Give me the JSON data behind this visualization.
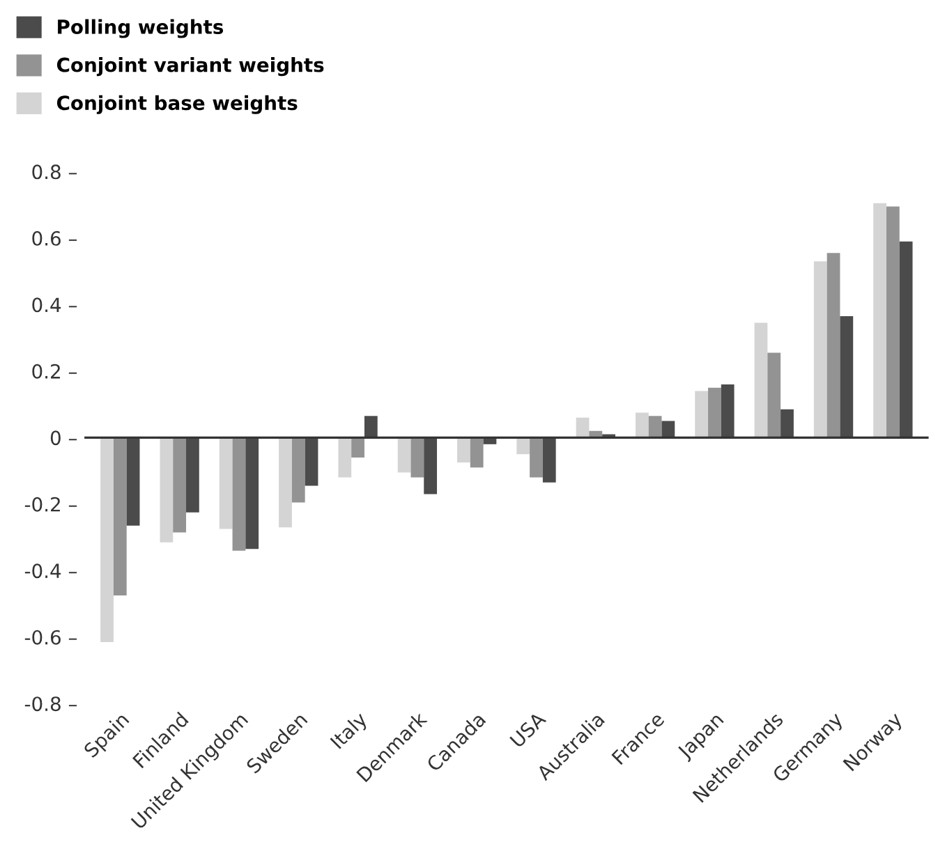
{
  "chart_data": {
    "type": "bar",
    "categories": [
      "Spain",
      "Finland",
      "United Kingdom",
      "Sweden",
      "Italy",
      "Denmark",
      "Canada",
      "USA",
      "Australia",
      "France",
      "Japan",
      "Netherlands",
      "Germany",
      "Norway"
    ],
    "series": [
      {
        "name": "Conjoint base weights",
        "color": "#d4d4d4",
        "values": [
          -0.615,
          -0.315,
          -0.275,
          -0.27,
          -0.12,
          -0.105,
          -0.075,
          -0.05,
          0.06,
          0.075,
          0.14,
          0.345,
          0.53,
          0.705
        ]
      },
      {
        "name": "Conjoint variant weights",
        "color": "#939393",
        "values": [
          -0.475,
          -0.285,
          -0.34,
          -0.195,
          -0.06,
          -0.12,
          -0.09,
          -0.12,
          0.02,
          0.065,
          0.15,
          0.255,
          0.555,
          0.695
        ]
      },
      {
        "name": "Polling weights",
        "color": "#4b4b4b",
        "values": [
          -0.265,
          -0.225,
          -0.335,
          -0.145,
          0.065,
          -0.17,
          -0.02,
          -0.135,
          0.01,
          0.05,
          0.16,
          0.085,
          0.365,
          0.59
        ]
      }
    ],
    "ylim": [
      -0.8,
      0.8
    ],
    "yticks": [
      {
        "value": -0.8,
        "label": "-0.8 –"
      },
      {
        "value": -0.6,
        "label": "-0.6 –"
      },
      {
        "value": -0.4,
        "label": "-0.4 –"
      },
      {
        "value": -0.2,
        "label": "-0.2 –"
      },
      {
        "value": 0,
        "label": "0 –"
      },
      {
        "value": 0.2,
        "label": "0.2 –"
      },
      {
        "value": 0.4,
        "label": "0.4 –"
      },
      {
        "value": 0.6,
        "label": "0.6 –"
      },
      {
        "value": 0.8,
        "label": "0.8 –"
      }
    ],
    "ref_lines": [
      {
        "axis": "y",
        "value": 0,
        "color": "#333333"
      }
    ],
    "grid": false,
    "legend": "top left"
  }
}
